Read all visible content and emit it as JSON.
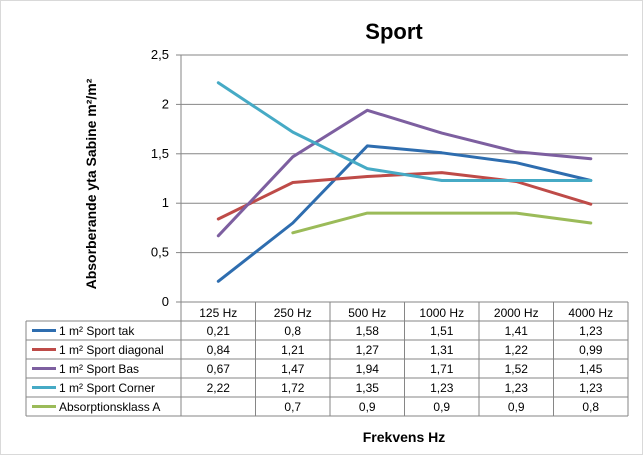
{
  "chart_data": {
    "type": "line",
    "title": "Sport",
    "xlabel": "Frekvens Hz",
    "ylabel": "Absorberande yta Sabine m²/m²",
    "categories": [
      "125 Hz",
      "250 Hz",
      "500 Hz",
      "1000 Hz",
      "2000 Hz",
      "4000 Hz"
    ],
    "ylim": [
      0,
      2.5
    ],
    "yticks": [
      "0",
      "0,5",
      "1",
      "1,5",
      "2",
      "2,5"
    ],
    "grid": true,
    "legend": "data-table-below",
    "series": [
      {
        "name": "1 m² Sport tak",
        "color": "#2E6DAF",
        "values": [
          0.21,
          0.8,
          1.58,
          1.51,
          1.41,
          1.23
        ],
        "labels": [
          "0,21",
          "0,8",
          "1,58",
          "1,51",
          "1,41",
          "1,23"
        ]
      },
      {
        "name": "1 m² Sport diagonal",
        "color": "#BE4B48",
        "values": [
          0.84,
          1.21,
          1.27,
          1.31,
          1.22,
          0.99
        ],
        "labels": [
          "0,84",
          "1,21",
          "1,27",
          "1,31",
          "1,22",
          "0,99"
        ]
      },
      {
        "name": "1 m² Sport Bas",
        "color": "#7D5FA0",
        "values": [
          0.67,
          1.47,
          1.94,
          1.71,
          1.52,
          1.45
        ],
        "labels": [
          "0,67",
          "1,47",
          "1,94",
          "1,71",
          "1,52",
          "1,45"
        ]
      },
      {
        "name": "1 m² Sport Corner",
        "color": "#46AAC5",
        "values": [
          2.22,
          1.72,
          1.35,
          1.23,
          1.23,
          1.23
        ],
        "labels": [
          "2,22",
          "1,72",
          "1,35",
          "1,23",
          "1,23",
          "1,23"
        ]
      },
      {
        "name": "Absorptionsklass A",
        "color": "#9BBB59",
        "values": [
          null,
          0.7,
          0.9,
          0.9,
          0.9,
          0.8
        ],
        "labels": [
          "",
          "0,7",
          "0,9",
          "0,9",
          "0,9",
          "0,8"
        ]
      }
    ]
  }
}
